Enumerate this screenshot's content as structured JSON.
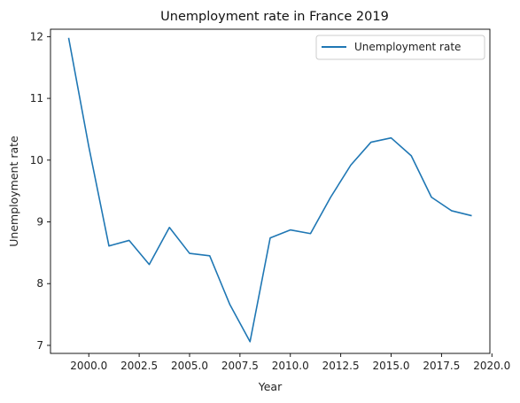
{
  "chart_data": {
    "type": "line",
    "title": "Unemployment rate in France 2019",
    "xlabel": "Year",
    "ylabel": "Unemployment rate",
    "xlim": [
      1998.1,
      2019.9
    ],
    "ylim": [
      6.87,
      12.12
    ],
    "x_ticks": [
      2000.0,
      2002.5,
      2005.0,
      2007.5,
      2010.0,
      2012.5,
      2015.0,
      2017.5,
      2020.0
    ],
    "x_tick_labels": [
      "2000.0",
      "2002.5",
      "2005.0",
      "2007.5",
      "2010.0",
      "2012.5",
      "2015.0",
      "2017.5",
      "2020.0"
    ],
    "y_ticks": [
      7,
      8,
      9,
      10,
      11,
      12
    ],
    "y_tick_labels": [
      "7",
      "8",
      "9",
      "10",
      "11",
      "12"
    ],
    "grid": false,
    "legend_position": "top-right",
    "series": [
      {
        "name": "Unemployment rate",
        "color": "#1f77b4",
        "x": [
          1999,
          2000,
          2001,
          2002,
          2003,
          2004,
          2005,
          2006,
          2007,
          2008,
          2009,
          2010,
          2011,
          2012,
          2013,
          2014,
          2015,
          2016,
          2017,
          2018,
          2019
        ],
        "y": [
          11.98,
          10.22,
          8.61,
          8.7,
          8.31,
          8.91,
          8.49,
          8.45,
          7.66,
          7.06,
          8.74,
          8.87,
          8.81,
          9.4,
          9.92,
          10.29,
          10.36,
          10.07,
          9.4,
          9.18,
          9.1
        ]
      }
    ]
  }
}
